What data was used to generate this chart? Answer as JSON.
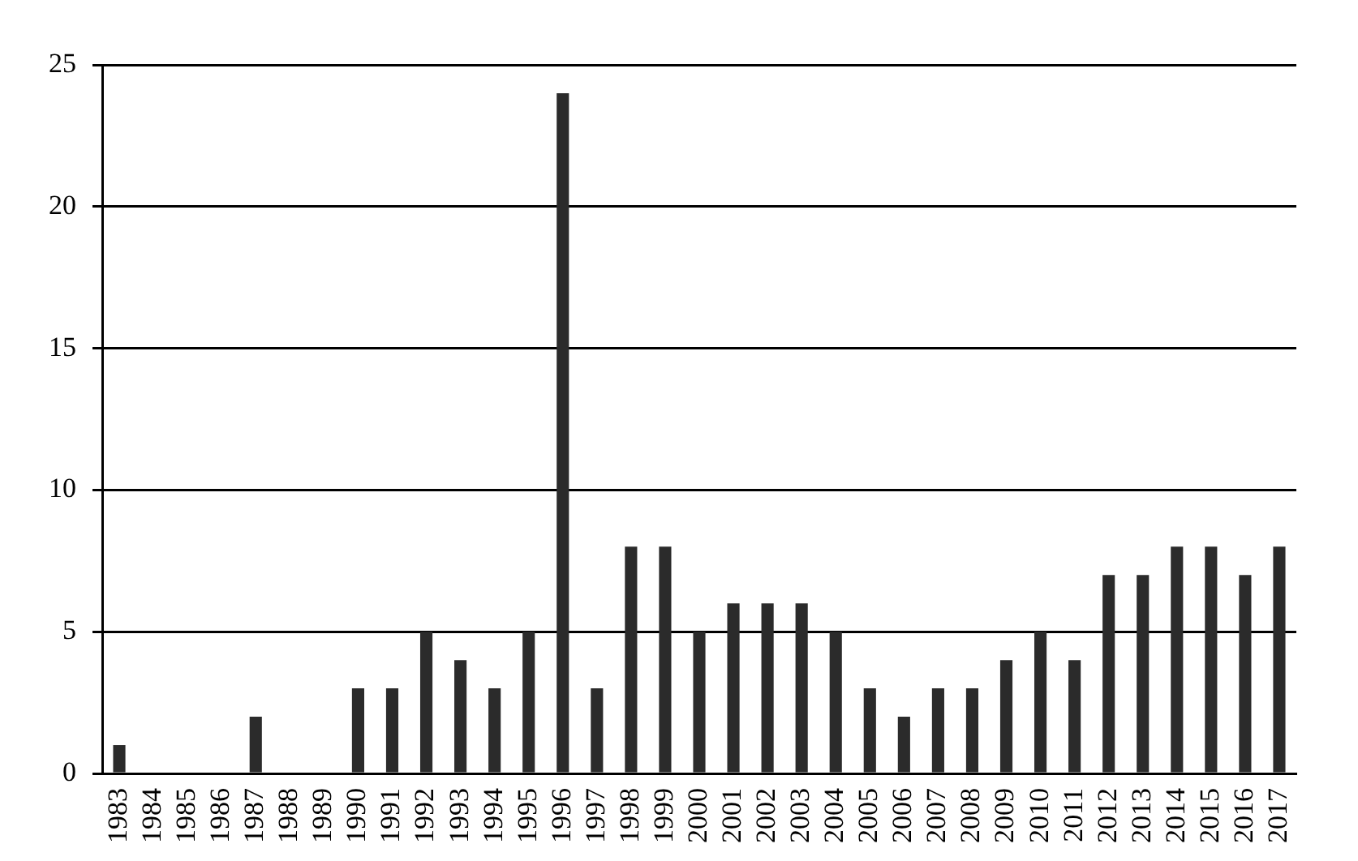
{
  "chart_data": {
    "type": "bar",
    "categories": [
      "1983",
      "1984",
      "1985",
      "1986",
      "1987",
      "1988",
      "1989",
      "1990",
      "1991",
      "1992",
      "1993",
      "1994",
      "1995",
      "1996",
      "1997",
      "1998",
      "1999",
      "2000",
      "2001",
      "2002",
      "2003",
      "2004",
      "2005",
      "2006",
      "2007",
      "2008",
      "2009",
      "2010",
      "2011",
      "2012",
      "2013",
      "2014",
      "2015",
      "2016",
      "2017"
    ],
    "values": [
      1,
      0,
      0,
      0,
      2,
      0,
      0,
      3,
      3,
      5,
      4,
      3,
      5,
      24,
      3,
      8,
      8,
      5,
      6,
      6,
      6,
      5,
      3,
      2,
      3,
      3,
      4,
      5,
      4,
      7,
      7,
      8,
      8,
      7,
      8
    ],
    "color": "#2b2b2b",
    "ylim": [
      0,
      25
    ],
    "yticks": [
      0,
      5,
      10,
      15,
      20,
      25
    ],
    "grid": "y",
    "legend": false
  }
}
